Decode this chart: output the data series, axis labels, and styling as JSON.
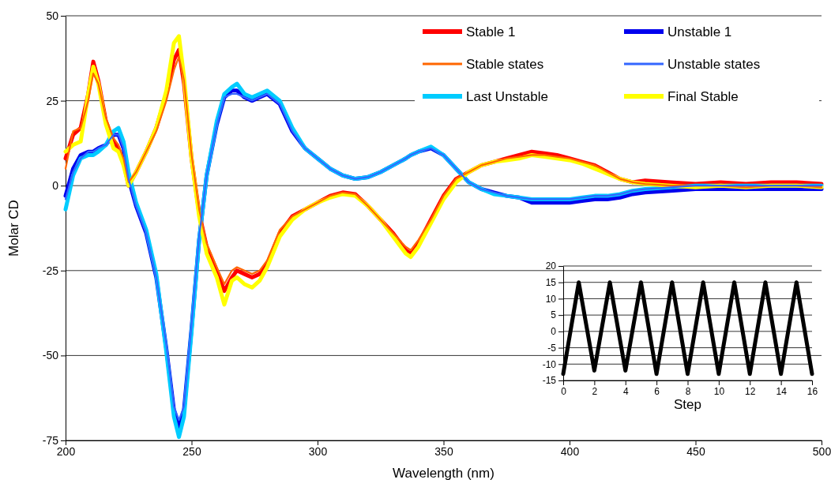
{
  "chart_data": [
    {
      "type": "line",
      "xlabel": "Wavelength (nm)",
      "ylabel": "Molar CD",
      "xlim": [
        200,
        500
      ],
      "ylim": [
        -75,
        50
      ],
      "xticks": [
        200,
        250,
        300,
        350,
        400,
        450,
        500
      ],
      "yticks": [
        -75,
        -50,
        -25,
        0,
        25,
        50
      ],
      "grid": "y",
      "legend": "top right",
      "line_style": "solid",
      "marker": "none",
      "x": [
        200,
        203,
        206,
        209,
        211,
        213,
        216,
        219,
        221,
        223,
        225,
        228,
        232,
        236,
        240,
        243,
        245,
        247,
        250,
        253,
        256,
        260,
        263,
        266,
        268,
        271,
        274,
        277,
        280,
        285,
        290,
        295,
        300,
        305,
        310,
        315,
        320,
        325,
        330,
        335,
        337,
        340,
        345,
        350,
        355,
        360,
        365,
        370,
        375,
        380,
        385,
        390,
        395,
        400,
        405,
        410,
        415,
        420,
        425,
        430,
        440,
        450,
        460,
        470,
        480,
        490,
        500
      ],
      "series": [
        {
          "name": "Stable 1",
          "color": "#ff0000",
          "values": [
            8,
            15,
            17,
            27,
            36.5,
            31,
            19,
            13,
            11,
            7,
            0,
            4,
            10,
            17,
            27,
            37,
            40,
            30,
            8,
            -8,
            -18,
            -25,
            -31,
            -27,
            -25,
            -26,
            -27,
            -26,
            -23,
            -14,
            -9,
            -7,
            -5,
            -3,
            -2,
            -2.5,
            -6,
            -10,
            -14,
            -19,
            -20,
            -17,
            -10,
            -3,
            2,
            4,
            6,
            7,
            8,
            9,
            10,
            9.5,
            9,
            8,
            7,
            6,
            4,
            2,
            1,
            1.5,
            1,
            0.5,
            1,
            0.5,
            1,
            1,
            0.5
          ]
        },
        {
          "name": "Unstable 1",
          "color": "#0000ee",
          "values": [
            -3,
            5,
            9,
            10,
            10,
            11,
            12,
            15,
            15,
            11,
            2,
            -6,
            -14,
            -27,
            -48,
            -66,
            -71,
            -66,
            -42,
            -16,
            3,
            18,
            26,
            28,
            28,
            26,
            25,
            26,
            27,
            24,
            16,
            11,
            8,
            5,
            3,
            2,
            2.5,
            4,
            6,
            8,
            9,
            10,
            11,
            9,
            5,
            1,
            -1,
            -2,
            -3,
            -3.5,
            -5,
            -5,
            -5,
            -5,
            -4.5,
            -4,
            -4,
            -3.5,
            -2.5,
            -2,
            -1.5,
            -1,
            -1,
            -1,
            -1,
            -1,
            -1
          ]
        },
        {
          "name": "Stable states",
          "color": "#ff6600",
          "values": [
            5,
            16,
            17,
            25,
            33,
            30,
            20,
            14,
            12,
            8,
            1,
            4,
            10,
            16,
            25,
            34,
            38,
            31,
            9,
            -7,
            -17,
            -24,
            -29,
            -25,
            -24,
            -25,
            -26,
            -25,
            -22,
            -13,
            -9,
            -7,
            -5,
            -3,
            -2,
            -2.5,
            -6,
            -10,
            -14,
            -18,
            -19,
            -16,
            -10,
            -3,
            2,
            4,
            6,
            7,
            8,
            8.5,
            9,
            9,
            8.5,
            8,
            7,
            6,
            4,
            2,
            1,
            0.5,
            0,
            0,
            0,
            -0.5,
            0,
            0,
            -0.5
          ]
        },
        {
          "name": "Unstable states",
          "color": "#3366ff",
          "values": [
            -4,
            4,
            8,
            10,
            10,
            11,
            12,
            15,
            15,
            11,
            2,
            -6,
            -14,
            -27,
            -47,
            -65,
            -69,
            -65,
            -41,
            -15,
            3,
            18,
            26,
            27,
            27,
            26,
            25,
            26,
            27,
            24,
            16,
            11,
            8,
            5,
            3,
            2,
            2.5,
            4,
            6,
            8,
            9,
            10,
            11,
            9,
            5,
            1,
            -1,
            -2,
            -3,
            -3.5,
            -4,
            -4,
            -4,
            -4,
            -3.5,
            -3,
            -3,
            -2.5,
            -1.5,
            -1,
            -0.5,
            0,
            0,
            0,
            0,
            0,
            0
          ]
        },
        {
          "name": "Last Unstable",
          "color": "#00ccff",
          "values": [
            -7,
            3,
            8,
            9,
            9,
            10,
            12,
            16,
            17,
            13,
            4,
            -5,
            -13,
            -26,
            -49,
            -68,
            -74,
            -68,
            -43,
            -16,
            3,
            19,
            27,
            29,
            30,
            27,
            26,
            27,
            28,
            25,
            17,
            11,
            8,
            5,
            3,
            2,
            2.5,
            4,
            6,
            8,
            9,
            10,
            11.5,
            9,
            5,
            1,
            -1,
            -2.5,
            -3,
            -3.5,
            -4,
            -4,
            -4,
            -4,
            -3.5,
            -3,
            -3,
            -2.5,
            -1.5,
            -1,
            -0.5,
            0,
            0,
            0,
            0,
            0,
            0
          ]
        },
        {
          "name": "Final Stable",
          "color": "#ffff00",
          "values": [
            10,
            12,
            13,
            27,
            35,
            30,
            18,
            11,
            10,
            6,
            0,
            4,
            10,
            17,
            28,
            42,
            44,
            32,
            8,
            -9,
            -20,
            -27,
            -35,
            -28,
            -27,
            -29,
            -30,
            -28,
            -24,
            -15,
            -10,
            -7,
            -5,
            -3.5,
            -2.5,
            -3,
            -6,
            -10,
            -15,
            -20,
            -21,
            -18,
            -11,
            -4,
            1,
            4,
            6,
            7,
            7.5,
            8,
            9,
            8.5,
            8,
            7.5,
            6.5,
            5,
            3.5,
            2,
            1,
            0.5,
            0,
            -0.5,
            0,
            -0.5,
            0,
            0,
            -0.5
          ]
        }
      ]
    },
    {
      "type": "line",
      "xlabel": "Step",
      "xlim": [
        0,
        16
      ],
      "ylim": [
        -15,
        20
      ],
      "xticks": [
        0,
        2,
        4,
        6,
        8,
        10,
        12,
        14,
        16
      ],
      "yticks": [
        -15,
        -10,
        -5,
        0,
        5,
        10,
        15,
        20
      ],
      "grid": "y",
      "marker": "none",
      "line_style": "solid",
      "x": [
        0,
        1,
        2,
        3,
        4,
        5,
        6,
        7,
        8,
        9,
        10,
        11,
        12,
        13,
        14,
        15,
        16
      ],
      "series": [
        {
          "color": "#000000",
          "values": [
            -13,
            15,
            -12,
            15,
            -12,
            15,
            -13,
            15,
            -13,
            15,
            -13,
            15,
            -13,
            15,
            -13,
            15,
            -13
          ]
        }
      ]
    }
  ]
}
